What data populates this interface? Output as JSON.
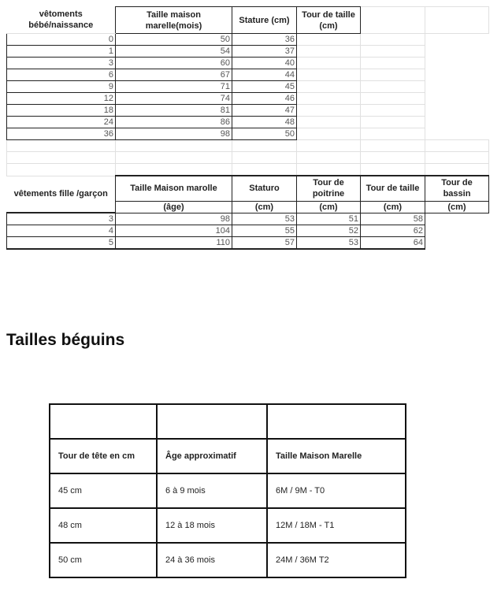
{
  "table_bebe": {
    "label": "vêtoments bébé/naissance",
    "headers": [
      "Taille maison marelle(mois)",
      "Stature (cm)",
      "Tour de taille (cm)"
    ],
    "rows": [
      [
        "0",
        "50",
        "36"
      ],
      [
        "1",
        "54",
        "37"
      ],
      [
        "3",
        "60",
        "40"
      ],
      [
        "6",
        "67",
        "44"
      ],
      [
        "9",
        "71",
        "45"
      ],
      [
        "12",
        "74",
        "46"
      ],
      [
        "18",
        "81",
        "47"
      ],
      [
        "24",
        "86",
        "48"
      ],
      [
        "36",
        "98",
        "50"
      ]
    ]
  },
  "table_enfant": {
    "label": "vêtements fille /garçon",
    "headers": [
      "Taille Maison marolle",
      "Staturo",
      "Tour de poitrine",
      "Tour de taille",
      "Tour de bassin"
    ],
    "subheaders": [
      "(âge)",
      "(cm)",
      "(cm)",
      "(cm)",
      "(cm)"
    ],
    "rows": [
      [
        "3",
        "98",
        "53",
        "51",
        "58"
      ],
      [
        "4",
        "104",
        "55",
        "52",
        "62"
      ],
      [
        "5",
        "110",
        "57",
        "53",
        "64"
      ]
    ]
  },
  "beguins": {
    "title": "Tailles béguins",
    "headers": [
      "Tour de tête en cm",
      "Âge approximatif",
      "Taille Maison Marelle"
    ],
    "rows": [
      [
        "45 cm",
        "6 à 9 mois",
        "6M / 9M - T0"
      ],
      [
        "48 cm",
        "12 à 18 mois",
        "12M / 18M - T1"
      ],
      [
        "50 cm",
        "24 à 36 mois",
        "24M / 36M T2"
      ]
    ]
  }
}
